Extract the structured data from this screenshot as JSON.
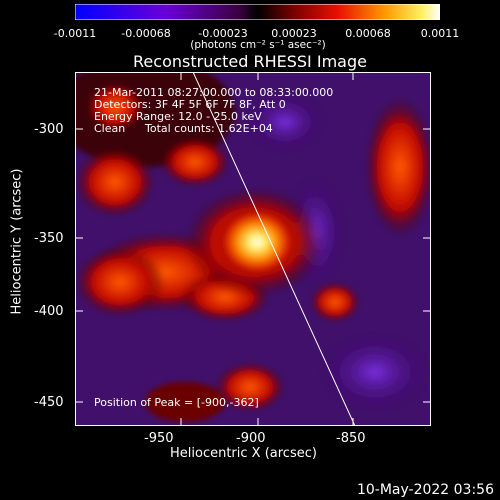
{
  "colorbar": {
    "tick_labels": [
      "-0.0011",
      "-0.00068",
      "-0.00023",
      "0.00023",
      "0.00068",
      "0.0011"
    ],
    "units": "(photons cm⁻² s⁻¹ asec⁻²)"
  },
  "plot": {
    "title": "Reconstructed RHESSI Image",
    "xlabel": "Heliocentric X (arcsec)",
    "ylabel": "Heliocentric Y (arcsec)",
    "x_ticks": [
      "-950",
      "-900",
      "-850"
    ],
    "y_ticks": [
      "-300",
      "-350",
      "-400",
      "-450"
    ],
    "info": {
      "time": "21-Mar-2011 08:27:00.000 to 08:33:00.000",
      "detectors": "Detectors: 3F 4F 5F 6F 7F 8F, Att 0",
      "energy": "Energy Range: 12.0 - 25.0 keV",
      "method": "Clean",
      "counts": "Total counts: 1.62E+04"
    },
    "peak": "Position of Peak = [-900,-362]"
  },
  "footer": "10-May-2022 03:56"
}
